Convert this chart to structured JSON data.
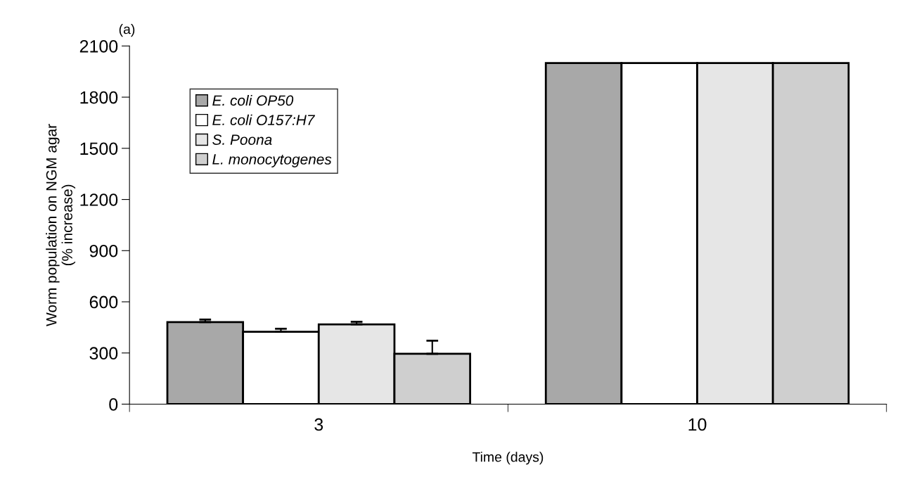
{
  "chart_data": {
    "type": "bar",
    "title": "(a)",
    "xlabel": "Time (days)",
    "ylabel": "Worm population on NGM agar\n(% increase)",
    "categories": [
      "3",
      "10"
    ],
    "series": [
      {
        "name": "E. coli OP50",
        "color": "#a8a8a8",
        "values": [
          481,
          2000
        ],
        "errors": [
          [
            481,
            496
          ],
          null
        ]
      },
      {
        "name": "E. coli O157:H7",
        "color": "#ffffff",
        "values": [
          424,
          2000
        ],
        "errors": [
          [
            424,
            442
          ],
          null
        ]
      },
      {
        "name": "S. Poona",
        "color": "#e6e6e6",
        "values": [
          468,
          2000
        ],
        "errors": [
          [
            468,
            483
          ],
          null
        ]
      },
      {
        "name": "L. monocytogenes",
        "color": "#cfcfcf",
        "values": [
          295,
          2000
        ],
        "errors": [
          [
            295,
            372
          ],
          null
        ]
      }
    ],
    "ylim": [
      0,
      2100
    ],
    "yticks": [
      0,
      300,
      600,
      900,
      1200,
      1500,
      1800,
      2100
    ],
    "grid": false,
    "legend": "top left"
  }
}
